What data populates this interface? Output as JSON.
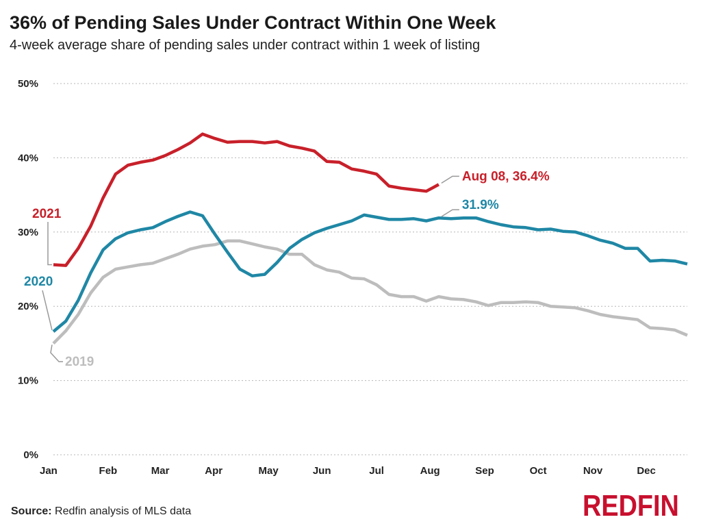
{
  "header": {
    "title": "36% of Pending Sales Under Contract Within One Week",
    "subtitle": "4-week average share of pending sales under contract within 1 week of listing"
  },
  "footer": {
    "source_label": "Source:",
    "source_text": "Redfin analysis of MLS data",
    "logo_text": "REDFIN"
  },
  "colors": {
    "s2021": "#c8202a",
    "s2020": "#1f87a5",
    "s2019": "#bdbdbd",
    "grid": "#b5b5b5",
    "logo": "#c8102e"
  },
  "chart_data": {
    "type": "line",
    "title": "36% of Pending Sales Under Contract Within One Week",
    "subtitle": "4-week average share of pending sales under contract within 1 week of listing",
    "xlabel": "",
    "ylabel": "",
    "x_ticks": [
      "Jan",
      "Feb",
      "Mar",
      "Apr",
      "May",
      "Jun",
      "Jul",
      "Aug",
      "Sep",
      "Oct",
      "Nov",
      "Dec"
    ],
    "y_ticks": [
      "0%",
      "10%",
      "20%",
      "30%",
      "40%",
      "50%"
    ],
    "ylim": [
      0,
      50
    ],
    "xlim": [
      1,
      52
    ],
    "x_unit": "week of year",
    "grid": "horizontal dotted",
    "legend": "direct labels",
    "series": [
      {
        "name": "2021",
        "x": [
          1,
          2,
          3,
          4,
          5,
          6,
          7,
          8,
          9,
          10,
          11,
          12,
          13,
          14,
          15,
          16,
          17,
          18,
          19,
          20,
          21,
          22,
          23,
          24,
          25,
          26,
          27,
          28,
          29,
          30,
          31,
          32
        ],
        "values": [
          25.6,
          25.5,
          27.8,
          30.8,
          34.6,
          37.8,
          39.0,
          39.4,
          39.7,
          40.3,
          41.1,
          42.0,
          43.2,
          42.6,
          42.1,
          42.2,
          42.2,
          42.0,
          42.2,
          41.6,
          41.3,
          40.9,
          39.5,
          39.4,
          38.5,
          38.2,
          37.8,
          36.2,
          35.9,
          35.7,
          35.5,
          36.4
        ]
      },
      {
        "name": "2020",
        "x": [
          1,
          2,
          3,
          4,
          5,
          6,
          7,
          8,
          9,
          10,
          11,
          12,
          13,
          14,
          15,
          16,
          17,
          18,
          19,
          20,
          21,
          22,
          23,
          24,
          25,
          26,
          27,
          28,
          29,
          30,
          31,
          32,
          33,
          34,
          35,
          36,
          37,
          38,
          39,
          40,
          41,
          42,
          43,
          44,
          45,
          46,
          47,
          48,
          49,
          50,
          51,
          52
        ],
        "values": [
          16.6,
          18.0,
          20.8,
          24.5,
          27.6,
          29.1,
          29.9,
          30.3,
          30.6,
          31.4,
          32.1,
          32.7,
          32.2,
          29.7,
          27.3,
          25.0,
          24.1,
          24.3,
          25.9,
          27.8,
          29.0,
          29.9,
          30.5,
          31.0,
          31.5,
          32.3,
          32.0,
          31.7,
          31.7,
          31.8,
          31.5,
          31.9,
          31.8,
          31.9,
          31.9,
          31.4,
          31.0,
          30.7,
          30.6,
          30.3,
          30.4,
          30.1,
          30.0,
          29.5,
          28.9,
          28.5,
          27.8,
          27.8,
          26.1,
          26.2,
          26.1,
          25.7
        ]
      },
      {
        "name": "2019",
        "x": [
          1,
          2,
          3,
          4,
          5,
          6,
          7,
          8,
          9,
          10,
          11,
          12,
          13,
          14,
          15,
          16,
          17,
          18,
          19,
          20,
          21,
          22,
          23,
          24,
          25,
          26,
          27,
          28,
          29,
          30,
          31,
          32,
          33,
          34,
          35,
          36,
          37,
          38,
          39,
          40,
          41,
          42,
          43,
          44,
          45,
          46,
          47,
          48,
          49,
          50,
          51,
          52
        ],
        "values": [
          15.0,
          16.7,
          18.9,
          21.8,
          23.9,
          25.0,
          25.3,
          25.6,
          25.8,
          26.4,
          27.0,
          27.7,
          28.1,
          28.3,
          28.8,
          28.8,
          28.4,
          28.0,
          27.7,
          27.0,
          27.0,
          25.6,
          24.9,
          24.6,
          23.8,
          23.7,
          22.9,
          21.6,
          21.3,
          21.3,
          20.7,
          21.3,
          21.0,
          20.9,
          20.6,
          20.1,
          20.5,
          20.5,
          20.6,
          20.5,
          20.0,
          19.9,
          19.8,
          19.4,
          18.9,
          18.6,
          18.4,
          18.2,
          17.1,
          17.0,
          16.8,
          16.1
        ]
      }
    ],
    "annotations": [
      {
        "text": "Aug 08, 36.4%",
        "series": "2021",
        "x": 32,
        "y": 36.4
      },
      {
        "text": "31.9%",
        "series": "2020",
        "x": 32,
        "y": 31.9
      },
      {
        "text": "2021",
        "series": "2021",
        "x": 1,
        "y": 25.6
      },
      {
        "text": "2020",
        "series": "2020",
        "x": 1,
        "y": 16.6
      },
      {
        "text": "2019",
        "series": "2019",
        "x": 1,
        "y": 15.0
      }
    ]
  }
}
